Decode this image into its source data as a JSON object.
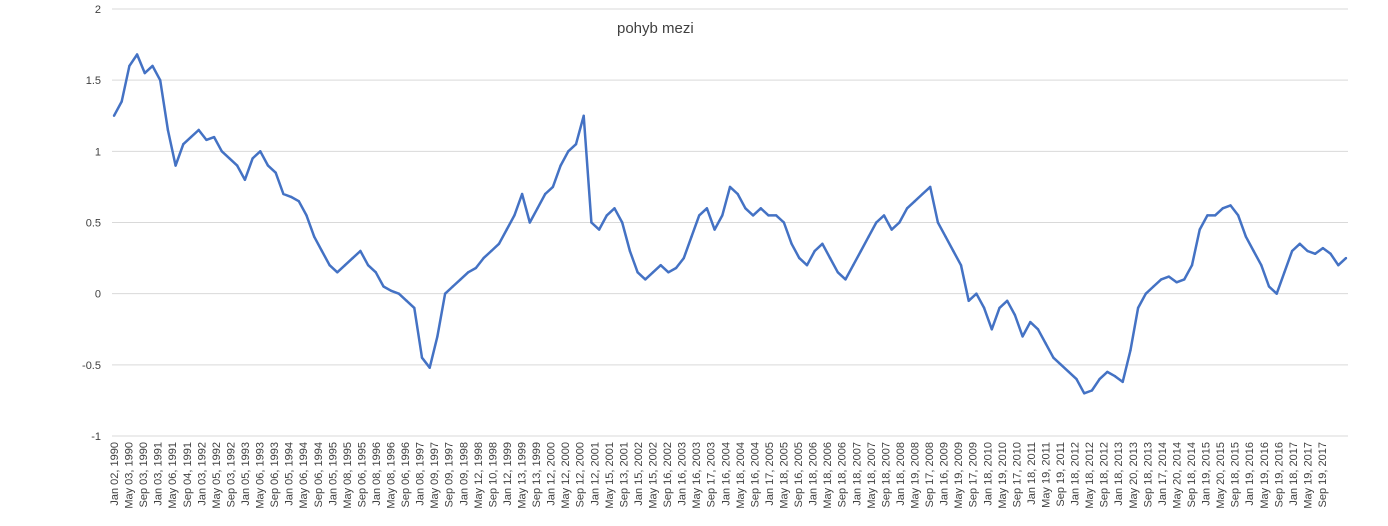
{
  "chart_data": {
    "type": "line",
    "title": "pohyb mezi",
    "xlabel": "",
    "ylabel": "",
    "ylim": [
      -1,
      2
    ],
    "yticks": [
      "2",
      "1.5",
      "1",
      "0.5",
      "0",
      "-0.5",
      "-1"
    ],
    "xticks": [
      "Jan 02, 1990",
      "May 03, 1990",
      "Sep 03, 1990",
      "Jan 03, 1991",
      "May 06, 1991",
      "Sep 04, 1991",
      "Jan 03, 1992",
      "May 05, 1992",
      "Sep 03, 1992",
      "Jan 05, 1993",
      "May 06, 1993",
      "Sep 06, 1993",
      "Jan 05, 1994",
      "May 06, 1994",
      "Sep 06, 1994",
      "Jan 05, 1995",
      "May 08, 1995",
      "Sep 06, 1995",
      "Jan 08, 1996",
      "May 08, 1996",
      "Sep 06, 1996",
      "Jan 08, 1997",
      "May 09, 1997",
      "Sep 09, 1997",
      "Jan 09, 1998",
      "May 12, 1998",
      "Sep 10, 1998",
      "Jan 12, 1999",
      "May 13, 1999",
      "Sep 13, 1999",
      "Jan 12, 2000",
      "May 12, 2000",
      "Sep 12, 2000",
      "Jan 12, 2001",
      "May 15, 2001",
      "Sep 13, 2001",
      "Jan 15, 2002",
      "May 15, 2002",
      "Sep 16, 2002",
      "Jan 16, 2003",
      "May 16, 2003",
      "Sep 17, 2003",
      "Jan 16, 2004",
      "May 18, 2004",
      "Sep 16, 2004",
      "Jan 17, 2005",
      "May 18, 2005",
      "Sep 16, 2005",
      "Jan 18, 2006",
      "May 18, 2006",
      "Sep 18, 2006",
      "Jan 18, 2007",
      "May 18, 2007",
      "Sep 18, 2007",
      "Jan 18, 2008",
      "May 19, 2008",
      "Sep 17, 2008",
      "Jan 16, 2009",
      "May 19, 2009",
      "Sep 17, 2009",
      "Jan 18, 2010",
      "May 19, 2010",
      "Sep 17, 2010",
      "Jan 18, 2011",
      "May 19, 2011",
      "Sep 19, 2011",
      "Jan 18, 2012",
      "May 18, 2012",
      "Sep 18, 2012",
      "Jan 18, 2013",
      "May 20, 2013",
      "Sep 18, 2013",
      "Jan 17, 2014",
      "May 20, 2014",
      "Sep 18, 2014",
      "Jan 19, 2015",
      "May 20, 2015",
      "Sep 18, 2015",
      "Jan 19, 2016",
      "May 19, 2016",
      "Sep 19, 2016",
      "Jan 18, 2017",
      "May 19, 2017",
      "Sep 19, 2017"
    ],
    "grid": true,
    "legend": "none",
    "line_color": "#4472c4",
    "series": [
      {
        "values": [
          1.25,
          1.35,
          1.6,
          1.68,
          1.55,
          1.6,
          1.5,
          1.15,
          0.9,
          1.05,
          1.1,
          1.15,
          1.08,
          1.1,
          1.0,
          0.95,
          0.9,
          0.8,
          0.95,
          1.0,
          0.9,
          0.85,
          0.7,
          0.68,
          0.65,
          0.55,
          0.4,
          0.3,
          0.2,
          0.15,
          0.2,
          0.25,
          0.3,
          0.2,
          0.15,
          0.05,
          0.02,
          0.0,
          -0.05,
          -0.1,
          -0.45,
          -0.52,
          -0.3,
          0.0,
          0.05,
          0.1,
          0.15,
          0.18,
          0.25,
          0.3,
          0.35,
          0.45,
          0.55,
          0.7,
          0.5,
          0.6,
          0.7,
          0.75,
          0.9,
          1.0,
          1.05,
          1.25,
          0.5,
          0.45,
          0.55,
          0.6,
          0.5,
          0.3,
          0.15,
          0.1,
          0.15,
          0.2,
          0.15,
          0.18,
          0.25,
          0.4,
          0.55,
          0.6,
          0.45,
          0.55,
          0.75,
          0.7,
          0.6,
          0.55,
          0.6,
          0.55,
          0.55,
          0.5,
          0.35,
          0.25,
          0.2,
          0.3,
          0.35,
          0.25,
          0.15,
          0.1,
          0.2,
          0.3,
          0.4,
          0.5,
          0.55,
          0.45,
          0.5,
          0.6,
          0.65,
          0.7,
          0.75,
          0.5,
          0.4,
          0.3,
          0.2,
          -0.05,
          0.0,
          -0.1,
          -0.25,
          -0.1,
          -0.05,
          -0.15,
          -0.3,
          -0.2,
          -0.25,
          -0.35,
          -0.45,
          -0.5,
          -0.55,
          -0.6,
          -0.7,
          -0.68,
          -0.6,
          -0.55,
          -0.58,
          -0.62,
          -0.4,
          -0.1,
          0.0,
          0.05,
          0.1,
          0.12,
          0.08,
          0.1,
          0.2,
          0.45,
          0.55,
          0.55,
          0.6,
          0.62,
          0.55,
          0.4,
          0.3,
          0.2,
          0.05,
          0.0,
          0.15,
          0.3,
          0.35,
          0.3,
          0.28,
          0.32,
          0.28,
          0.2,
          0.25
        ]
      }
    ]
  }
}
